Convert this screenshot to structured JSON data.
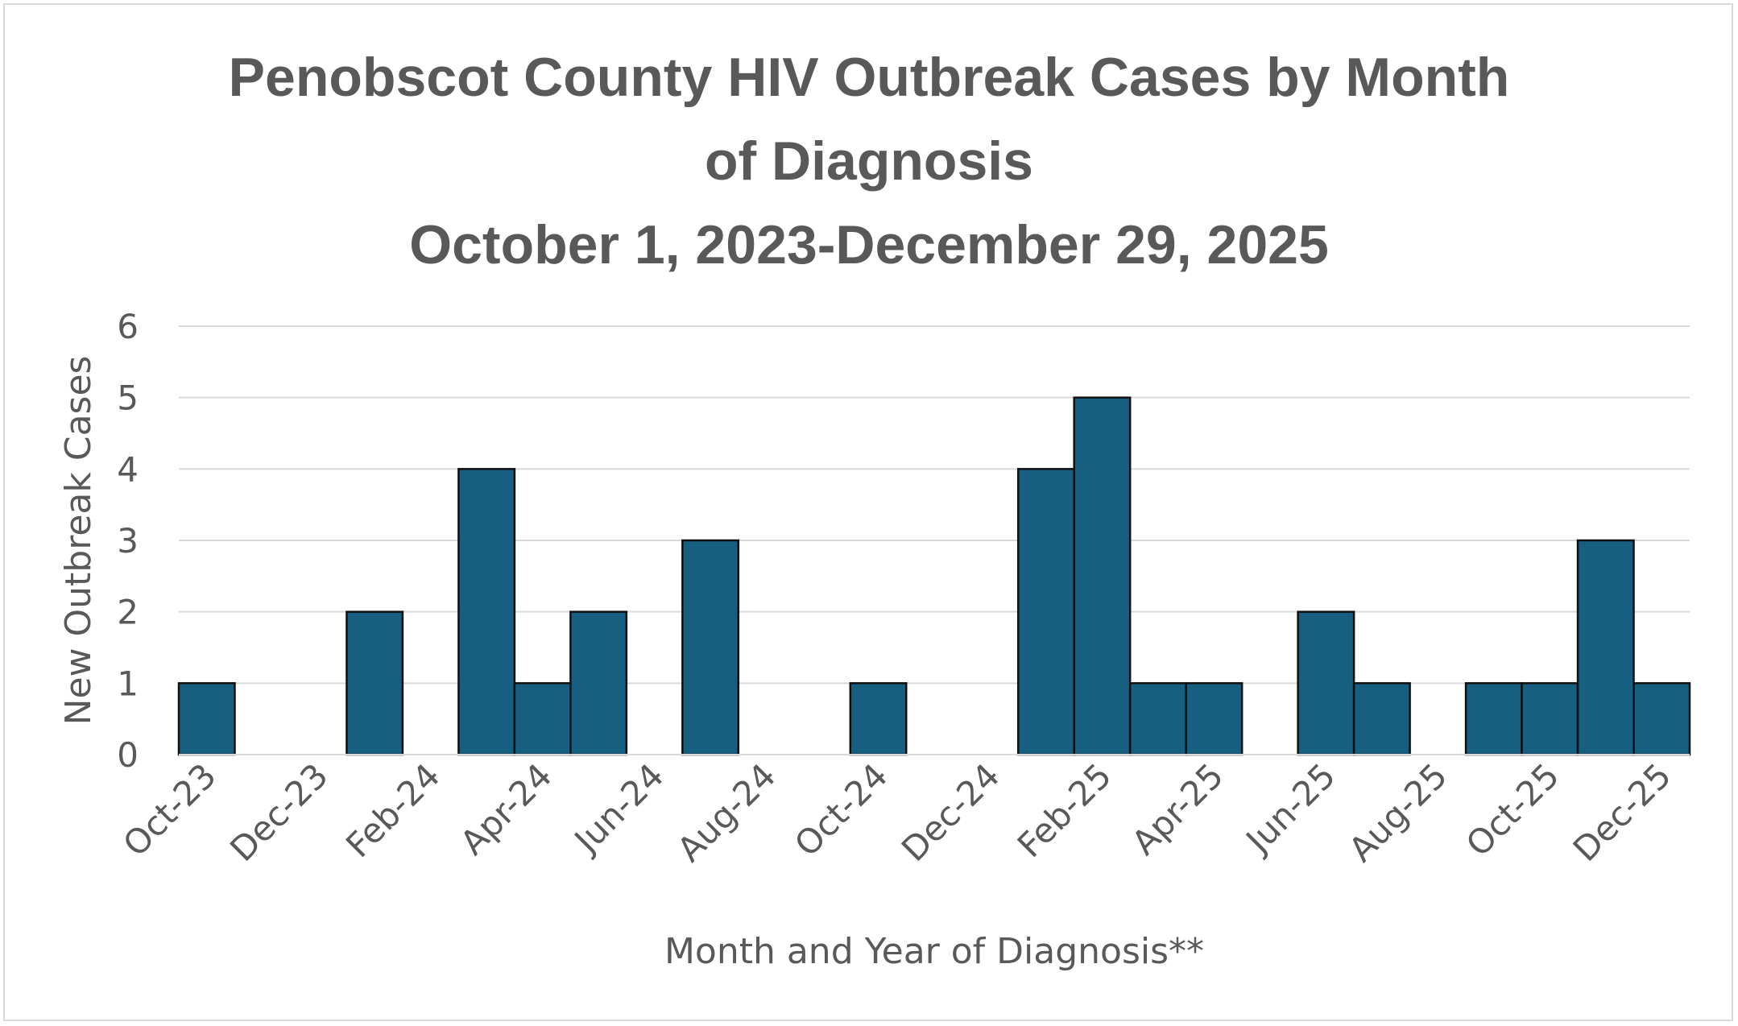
{
  "chart_data": {
    "type": "bar",
    "title_lines": [
      "Penobscot County HIV Outbreak Cases by Month",
      "of Diagnosis",
      "October 1, 2023-December 29, 2025"
    ],
    "xlabel": "Month and Year of Diagnosis**",
    "ylabel": "New Outbreak Cases",
    "ylim": [
      0,
      6
    ],
    "yticks": [
      "0",
      "1",
      "2",
      "3",
      "4",
      "5",
      "6"
    ],
    "categories": [
      "Oct-23",
      "Nov-23",
      "Dec-23",
      "Jan-24",
      "Feb-24",
      "Mar-24",
      "Apr-24",
      "May-24",
      "Jun-24",
      "Jul-24",
      "Aug-24",
      "Sep-24",
      "Oct-24",
      "Nov-24",
      "Dec-24",
      "Jan-25",
      "Feb-25",
      "Mar-25",
      "Apr-25",
      "May-25",
      "Jun-25",
      "Jul-25",
      "Aug-25",
      "Sep-25",
      "Oct-25",
      "Nov-25",
      "Dec-25"
    ],
    "xtick_labels": [
      "Oct-23",
      "Dec-23",
      "Feb-24",
      "Apr-24",
      "Jun-24",
      "Aug-24",
      "Oct-24",
      "Dec-24",
      "Feb-25",
      "Apr-25",
      "Jun-25",
      "Aug-25",
      "Oct-25",
      "Dec-25"
    ],
    "values": [
      1,
      0,
      0,
      2,
      0,
      4,
      1,
      2,
      0,
      3,
      0,
      0,
      1,
      0,
      0,
      4,
      5,
      1,
      1,
      0,
      2,
      1,
      0,
      1,
      1,
      3,
      1
    ],
    "grid": true,
    "legend": "none",
    "bar_color": "#175f80",
    "bar_edge_color": "#111111",
    "grid_color": "#d9d9d9",
    "text_color": "#595959"
  }
}
